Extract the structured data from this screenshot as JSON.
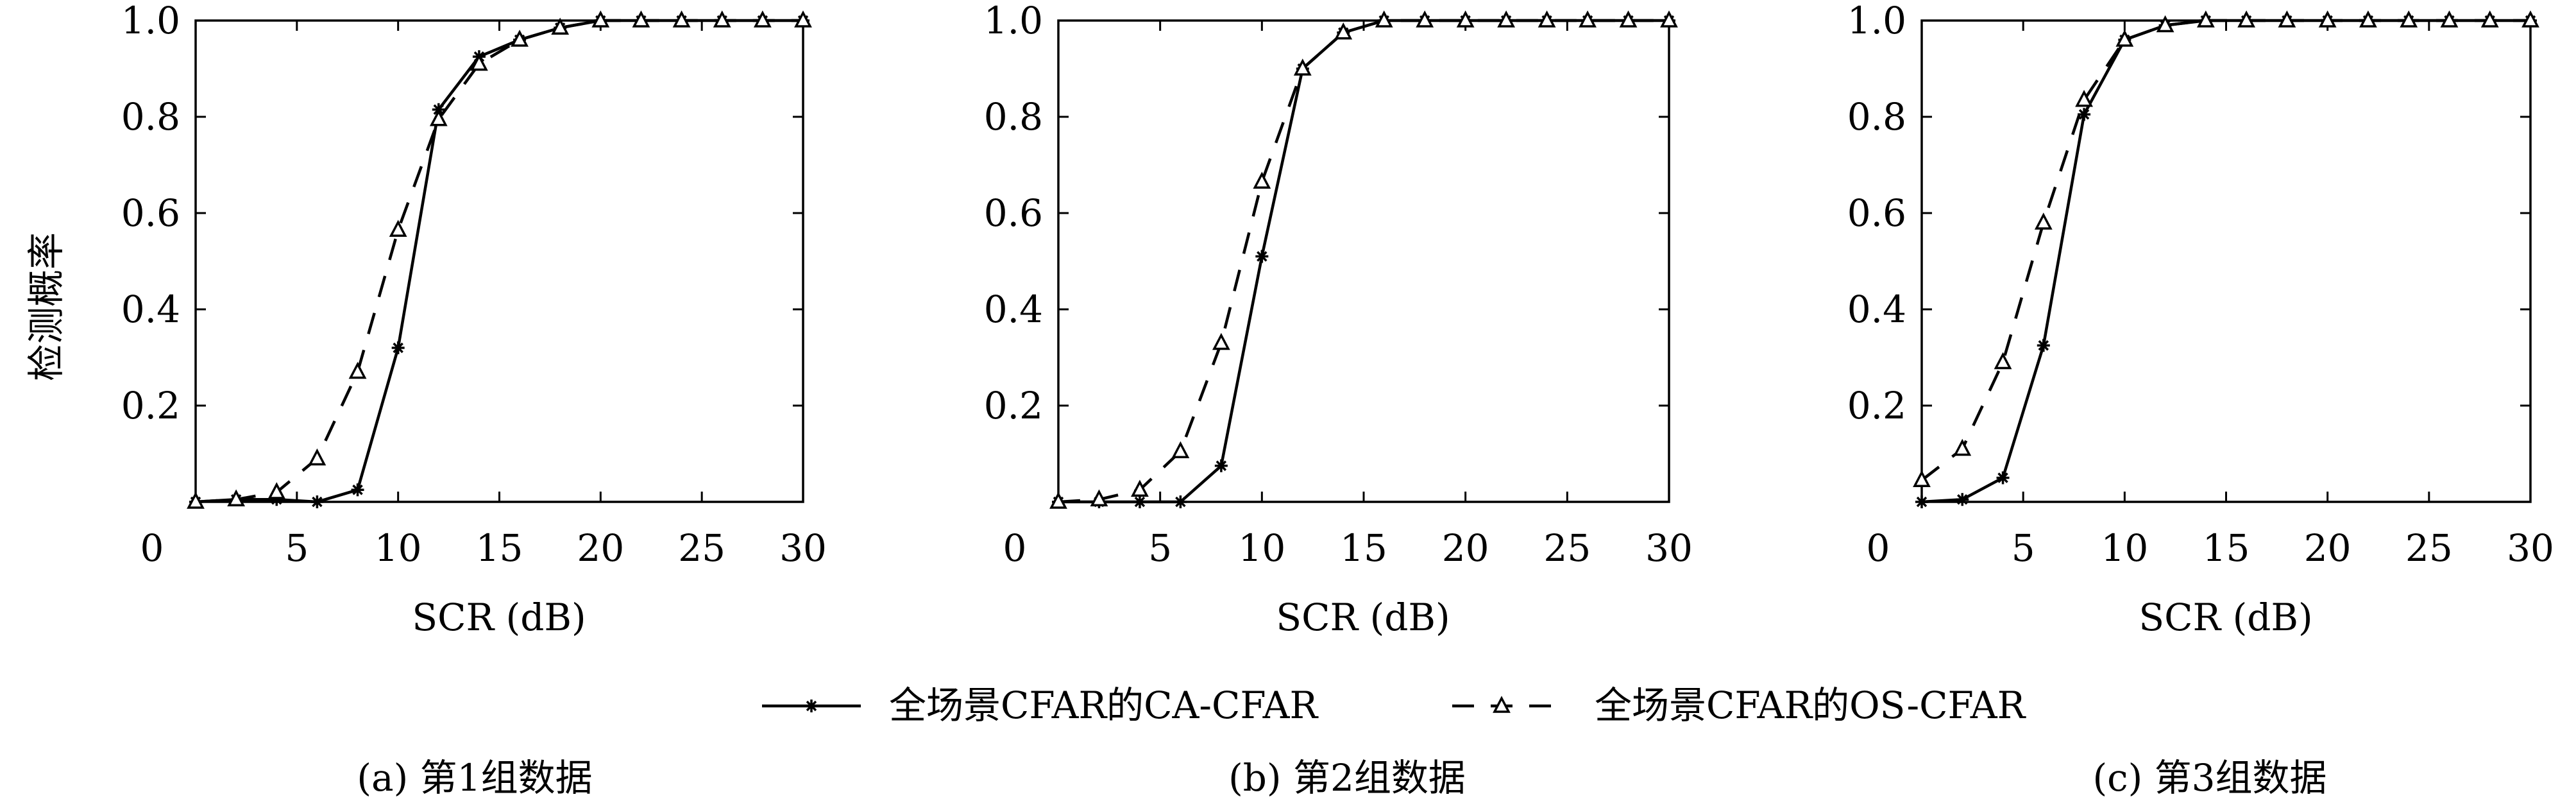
{
  "ylabel_shared": "检测概率",
  "legend": [
    {
      "label": "全场景CFAR的CA-CFAR",
      "marker": "star",
      "line": "solid"
    },
    {
      "label": "全场景CFAR的OS-CFAR",
      "marker": "triangle",
      "line": "dashed"
    }
  ],
  "chart_data": [
    {
      "type": "line",
      "caption": "(a) 第1组数据",
      "xlabel": "SCR (dB)",
      "ylabel": "检测概率",
      "xlim": [
        0,
        30
      ],
      "ylim": [
        0,
        1.0
      ],
      "xticks": [
        0,
        5,
        10,
        15,
        20,
        25,
        30
      ],
      "yticks": [
        0.2,
        0.4,
        0.6,
        0.8,
        1.0
      ],
      "grid": false,
      "series": [
        {
          "name": "全场景CFAR的CA-CFAR",
          "x": [
            0,
            2,
            4,
            6,
            8,
            10,
            12,
            14,
            16,
            18,
            20,
            22,
            24,
            26,
            28,
            30
          ],
          "y": [
            0,
            0.005,
            0.005,
            0,
            0.025,
            0.32,
            0.815,
            0.925,
            0.96,
            0.985,
            1,
            1,
            1,
            1,
            1,
            1
          ]
        },
        {
          "name": "全场景CFAR的OS-CFAR",
          "x": [
            0,
            2,
            4,
            6,
            8,
            10,
            12,
            14,
            16,
            18,
            20,
            22,
            24,
            26,
            28,
            30
          ],
          "y": [
            0,
            0.005,
            0.02,
            0.09,
            0.27,
            0.565,
            0.795,
            0.91,
            0.96,
            0.985,
            1,
            1,
            1,
            1,
            1,
            1
          ]
        }
      ]
    },
    {
      "type": "line",
      "caption": "(b) 第2组数据",
      "xlabel": "SCR (dB)",
      "ylabel": "",
      "xlim": [
        0,
        30
      ],
      "ylim": [
        0,
        1.0
      ],
      "xticks": [
        0,
        5,
        10,
        15,
        20,
        25,
        30
      ],
      "yticks": [
        0.2,
        0.4,
        0.6,
        0.8,
        1.0
      ],
      "grid": false,
      "series": [
        {
          "name": "全场景CFAR的CA-CFAR",
          "x": [
            0,
            2,
            4,
            6,
            8,
            10,
            12,
            14,
            16,
            18,
            20,
            22,
            24,
            26,
            28,
            30
          ],
          "y": [
            0,
            0,
            0,
            0,
            0.075,
            0.51,
            0.9,
            0.975,
            1,
            1,
            1,
            1,
            1,
            1,
            1,
            1
          ]
        },
        {
          "name": "全场景CFAR的OS-CFAR",
          "x": [
            0,
            2,
            4,
            6,
            8,
            10,
            12,
            14,
            16,
            18,
            20,
            22,
            24,
            26,
            28,
            30
          ],
          "y": [
            0,
            0.005,
            0.025,
            0.105,
            0.33,
            0.665,
            0.9,
            0.975,
            1,
            1,
            1,
            1,
            1,
            1,
            1,
            1
          ]
        }
      ]
    },
    {
      "type": "line",
      "caption": "(c) 第3组数据",
      "xlabel": "SCR (dB)",
      "ylabel": "",
      "xlim": [
        0,
        30
      ],
      "ylim": [
        0,
        1.0
      ],
      "xticks": [
        0,
        5,
        10,
        15,
        20,
        25,
        30
      ],
      "yticks": [
        0.2,
        0.4,
        0.6,
        0.8,
        1.0
      ],
      "grid": false,
      "series": [
        {
          "name": "全场景CFAR的CA-CFAR",
          "x": [
            0,
            2,
            4,
            6,
            8,
            10,
            12,
            14,
            16,
            18,
            20,
            22,
            24,
            26,
            28,
            30
          ],
          "y": [
            0,
            0.005,
            0.05,
            0.325,
            0.805,
            0.96,
            0.99,
            1,
            1,
            1,
            1,
            1,
            1,
            1,
            1,
            1
          ]
        },
        {
          "name": "全场景CFAR的OS-CFAR",
          "x": [
            0,
            2,
            4,
            6,
            8,
            10,
            12,
            14,
            16,
            18,
            20,
            22,
            24,
            26,
            28,
            30
          ],
          "y": [
            0.045,
            0.11,
            0.29,
            0.58,
            0.835,
            0.96,
            0.99,
            1,
            1,
            1,
            1,
            1,
            1,
            1,
            1,
            1
          ]
        }
      ]
    }
  ]
}
